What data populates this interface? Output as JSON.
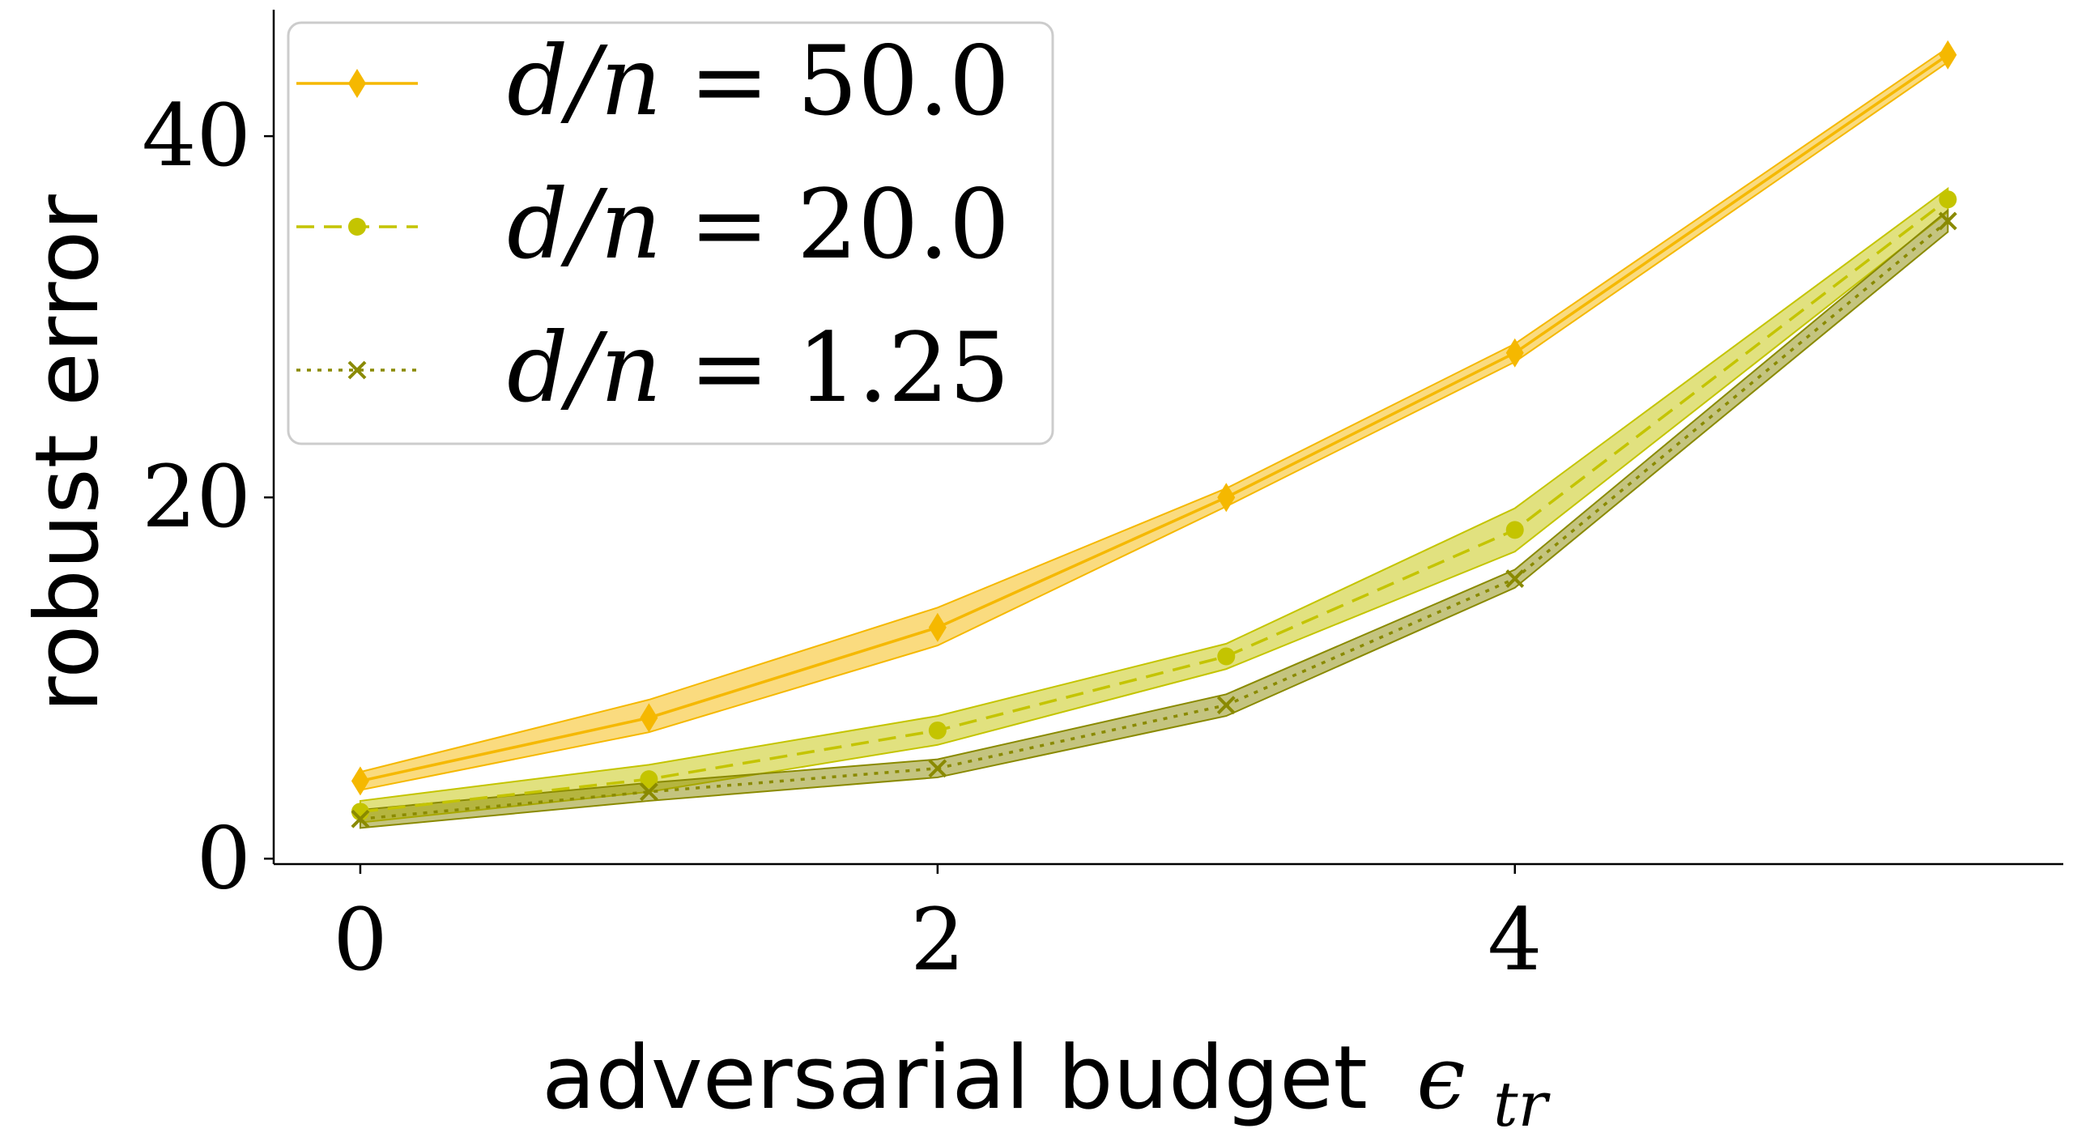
{
  "chart_data": {
    "type": "line",
    "title": "",
    "xlabel": "adversarial budget",
    "xlabel_symbol": "ϵ",
    "xlabel_subscript": "tr",
    "ylabel": "robust error",
    "xlim": [
      -0.3,
      5.9
    ],
    "ylim": [
      -0.3,
      47
    ],
    "x_ticks": [
      "0",
      "2",
      "4"
    ],
    "y_ticks": [
      "0",
      "20",
      "40"
    ],
    "grid": false,
    "legend_position": "top-left",
    "x": [
      0,
      1,
      2,
      3,
      4,
      5.5
    ],
    "series": [
      {
        "name": "d/n = 50.0",
        "name_parts": [
          "d/n",
          "=",
          "50.0"
        ],
        "values": [
          4.3,
          7.8,
          12.8,
          20.0,
          28.0,
          44.5
        ],
        "lower": [
          3.8,
          7.0,
          11.8,
          19.5,
          27.5,
          44.1
        ],
        "upper": [
          4.8,
          8.8,
          13.9,
          20.5,
          28.5,
          44.9
        ],
        "color": "#f5b800",
        "marker": "diamond",
        "linestyle": "solid"
      },
      {
        "name": "d/n = 20.0",
        "name_parts": [
          "d/n",
          "=",
          "20.0"
        ],
        "values": [
          2.6,
          4.4,
          7.1,
          11.2,
          18.2,
          36.5
        ],
        "lower": [
          2.0,
          3.7,
          6.3,
          10.5,
          17.0,
          35.8
        ],
        "upper": [
          3.2,
          5.2,
          7.9,
          11.9,
          19.4,
          37.1
        ],
        "color": "#c4c400",
        "marker": "circle",
        "linestyle": "dashed"
      },
      {
        "name": "d/n = 1.25",
        "name_parts": [
          "d/n",
          "=",
          "1.25"
        ],
        "values": [
          2.2,
          3.7,
          5.0,
          8.5,
          15.5,
          35.3
        ],
        "lower": [
          1.7,
          3.2,
          4.5,
          7.9,
          15.0,
          34.7
        ],
        "upper": [
          2.7,
          4.2,
          5.5,
          9.1,
          16.0,
          35.9
        ],
        "color": "#8a8a00",
        "marker": "x",
        "linestyle": "dotted"
      }
    ]
  }
}
